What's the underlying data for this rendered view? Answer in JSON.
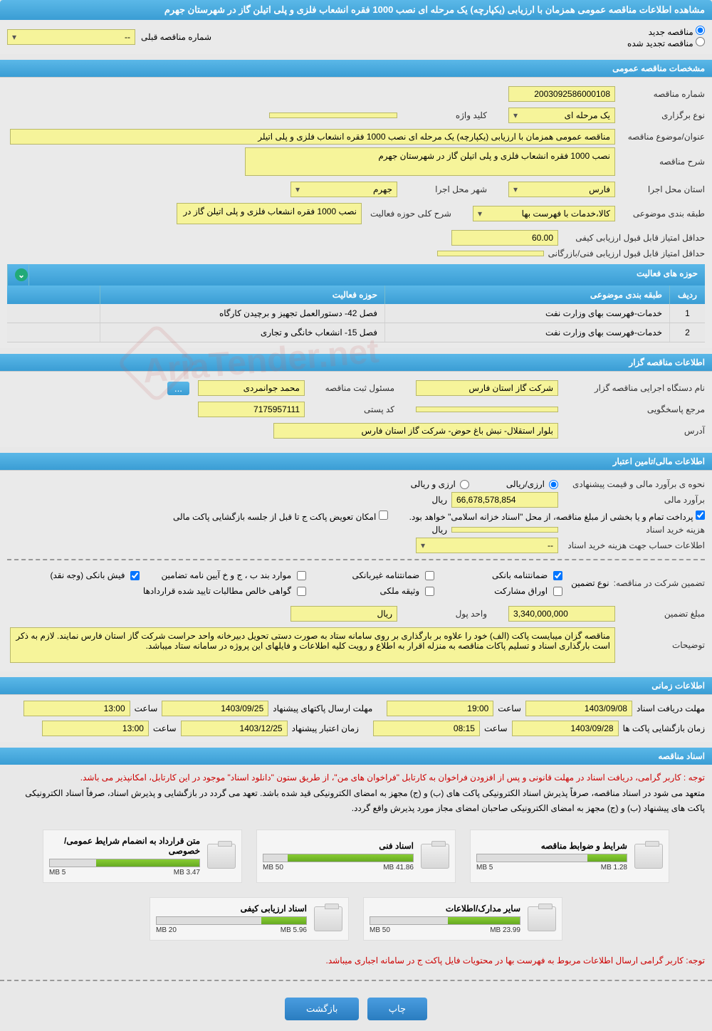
{
  "page_title": "مشاهده اطلاعات مناقصه عمومی همزمان با ارزیابی (یکپارچه) یک مرحله ای نصب 1000 فقره انشعاب فلزی و پلی اتیلن گاز در شهرستان جهرم",
  "radio": {
    "new_tender": "مناقصه جدید",
    "renewed_tender": "مناقصه تجدید شده",
    "prev_num_label": "شماره مناقصه قبلی",
    "prev_num_value": "--"
  },
  "sections": {
    "general": "مشخصات مناقصه عمومی",
    "holder": "اطلاعات مناقصه گزار",
    "financial": "اطلاعات مالی/تامین اعتبار",
    "timing": "اطلاعات زمانی",
    "docs": "اسناد مناقصه"
  },
  "general": {
    "tender_num_label": "شماره مناقصه",
    "tender_num": "2003092586000108",
    "type_label": "نوع برگزاری",
    "type_value": "یک مرحله ای",
    "keyword_label": "کلید واژه",
    "keyword_value": "",
    "title_label": "عنوان/موضوع مناقصه",
    "title_value": "مناقصه عمومی همزمان با ارزیابی (یکپارچه) یک مرحله ای نصب 1000 فقره انشعاب فلزی و پلی اتیلر",
    "desc_label": "شرح مناقصه",
    "desc_value": "نصب 1000 فقره انشعاب فلزی و پلی اتیلن گاز در شهرستان جهرم",
    "province_label": "استان محل اجرا",
    "province_value": "فارس",
    "city_label": "شهر محل اجرا",
    "city_value": "جهرم",
    "category_label": "طبقه بندی موضوعی",
    "category_value": "کالا،خدمات با فهرست بها",
    "activity_scope_label": "شرح کلی حوزه فعالیت",
    "activity_scope_value": "نصب 1000 فقره انشعاب فلزی و پلی اتیلن گاز در",
    "min_quality_label": "حداقل امتیاز قابل قبول ارزیابی کیفی",
    "min_quality_value": "60.00",
    "min_tech_label": "حداقل امتیاز قابل قبول ارزیابی فنی/بازرگانی",
    "min_tech_value": ""
  },
  "activity_table": {
    "header": "حوزه های فعالیت",
    "col_idx": "ردیف",
    "col_category": "طبقه بندی موضوعی",
    "col_activity": "حوزه فعالیت",
    "rows": [
      {
        "idx": "1",
        "cat": "خدمات-فهرست بهای وزارت نفت",
        "act": "فصل 42- دستورالعمل تجهیز و برچیدن کارگاه"
      },
      {
        "idx": "2",
        "cat": "خدمات-فهرست بهای وزارت نفت",
        "act": "فصل 15- انشعاب خانگی و تجاری"
      }
    ]
  },
  "holder": {
    "org_label": "نام دستگاه اجرایی مناقصه گزار",
    "org_value": "شرکت گاز استان فارس",
    "registrar_label": "مسئول ثبت مناقصه",
    "registrar_value": "محمد  جوانمردی",
    "response_label": "مرجع پاسخگویی",
    "response_value": "",
    "postal_label": "کد پستی",
    "postal_value": "7175957111",
    "address_label": "آدرس",
    "address_value": "بلوار استقلال- نبش باغ حوض- شرکت گاز استان فارس",
    "ellipsis": "..."
  },
  "financial": {
    "method_label": "نحوه ی برآورد مالی و قیمت پیشنهادی",
    "method_opt1": "ارزی/ریالی",
    "method_opt2": "ارزی و ریالی",
    "estimate_label": "برآورد مالی",
    "estimate_value": "66,678,578,854",
    "currency": "ریال",
    "payment_note": "پرداخت تمام و یا بخشی از مبلغ مناقصه، از محل \"اسناد خزانه اسلامی\" خواهد بود.",
    "envelope_swap": "امکان تعویض پاکت ج تا قبل از جلسه بازگشایی پاکت مالی",
    "doc_fee_label": "هزینه خرید اسناد",
    "doc_fee_value": "",
    "account_label": "اطلاعات حساب جهت هزینه خرید اسناد",
    "account_value": "--",
    "guarantee_label": "تضمین شرکت در مناقصه:",
    "guarantee_type_label": "نوع تضمین",
    "guarantee_opts": {
      "bank": "ضمانتنامه بانکی",
      "nonbank": "ضمانتنامه غیربانکی",
      "cases": "موارد بند ب ، ج و خ آیین نامه تضامین",
      "cash": "فیش بانکی (وجه نقد)",
      "bonds": "اوراق مشارکت",
      "property": "وثیقه ملکی",
      "receivables": "گواهی خالص مطالبات تایید شده قراردادها"
    },
    "guarantee_amount_label": "مبلغ تضمین",
    "guarantee_amount": "3,340,000,000",
    "currency_unit_label": "واحد پول",
    "notes_label": "توضیحات",
    "notes_value": "مناقصه گزان میبایست پاکت (الف) خود را علاوه بر بارگذاری بر روی سامانه ستاد به صورت دستی تحویل دبیرخانه واحد حراست شرکت گاز استان فارس نمایند.\nلازم به ذکر است بارگذاری اسناد و تسلیم پاکات مناقصه به منزله  اقرار به اطلاع و رویت کلیه اطلاعات و فایلهای این پروژه در سامانه ستاد میباشد."
  },
  "timing": {
    "doc_deadline_label": "مهلت دریافت اسناد",
    "doc_deadline_date": "1403/09/08",
    "doc_deadline_time": "19:00",
    "envelope_deadline_label": "مهلت ارسال پاکتهای پیشنهاد",
    "envelope_deadline_date": "1403/09/25",
    "envelope_deadline_time": "13:00",
    "opening_label": "زمان بازگشایی پاکت ها",
    "opening_date": "1403/09/28",
    "opening_time": "08:15",
    "validity_label": "زمان اعتبار پیشنهاد",
    "validity_date": "1403/12/25",
    "validity_time": "13:00",
    "time_label": "ساعت"
  },
  "docs": {
    "notice1": "توجه : کاربر گرامی، دریافت اسناد در مهلت قانونی و پس از افزودن فراخوان به کارتابل \"فراخوان های من\"، از طریق ستون \"دانلود اسناد\" موجود در این کارتابل، امکانپذیر می باشد.",
    "notice2": "متعهد می شود در اسناد مناقصه، صرفاً پذیرش اسناد الکترونیکی پاکت های (ب) و (ج) مجهز به امضای الکترونیکی قید شده باشد. تعهد می گردد در بازگشایی و پذیرش اسناد، صرفاً اسناد الکترونیکی پاکت های پیشنهاد (ب) و (ج) مجهز به امضای الکترونیکی صاحبان امضای مجاز مورد پذیرش واقع گردد.",
    "notice3": "توجه: کاربر گرامی ارسال اطلاعات مربوط به فهرست بها در محتویات فایل پاکت ج در سامانه اجباری میباشد.",
    "files": [
      {
        "name": "شرایط و ضوابط مناقصه",
        "size": "1.28 MB",
        "max": "5 MB",
        "pct": 26
      },
      {
        "name": "اسناد فنی",
        "size": "41.86 MB",
        "max": "50 MB",
        "pct": 84
      },
      {
        "name": "متن قرارداد به انضمام شرایط عمومی/خصوصی",
        "size": "3.47 MB",
        "max": "5 MB",
        "pct": 69
      },
      {
        "name": "سایر مدارک/اطلاعات",
        "size": "23.99 MB",
        "max": "50 MB",
        "pct": 48
      },
      {
        "name": "اسناد ارزیابی کیفی",
        "size": "5.96 MB",
        "max": "20 MB",
        "pct": 30
      }
    ]
  },
  "buttons": {
    "print": "چاپ",
    "back": "بازگشت"
  },
  "watermark": "AriaTender.net"
}
